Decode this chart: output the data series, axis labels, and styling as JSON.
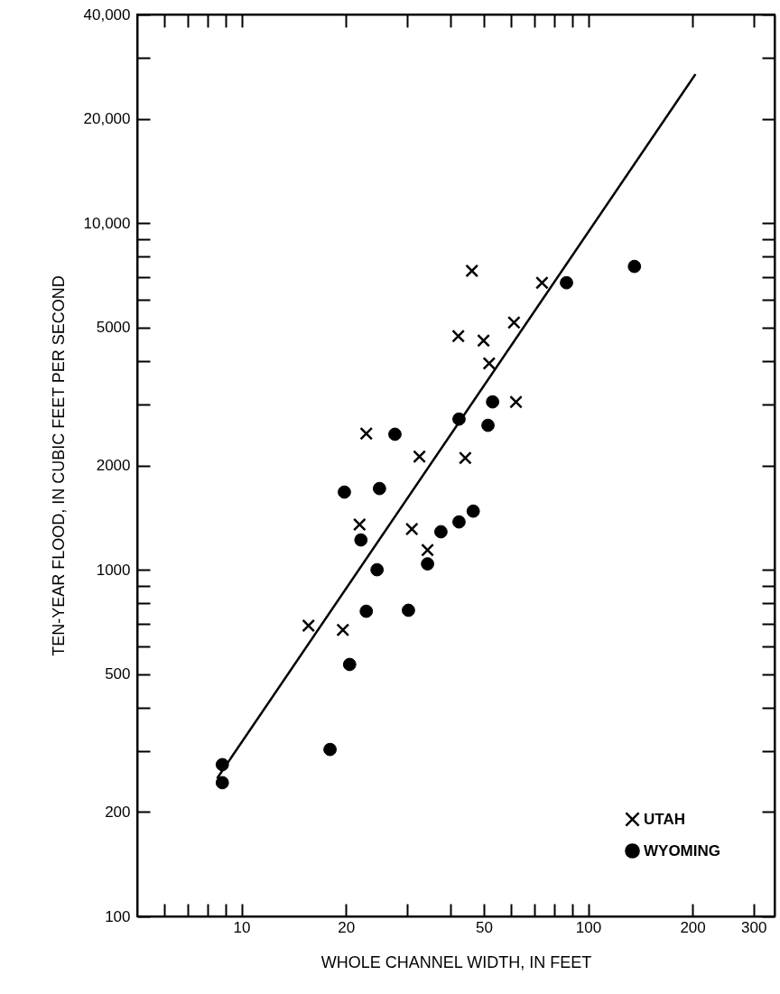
{
  "chart_data": {
    "type": "scatter",
    "xlabel": "WHOLE CHANNEL WIDTH, IN FEET",
    "ylabel": "TEN-YEAR FLOOD, IN CUBIC FEET PER SECOND",
    "log": "xy",
    "grid": false,
    "legend": "bottom right",
    "xlim": [
      5,
      345
    ],
    "ylim": [
      100,
      40000
    ],
    "xticks": [
      {
        "value": 6,
        "label": null
      },
      {
        "value": 7,
        "label": null
      },
      {
        "value": 8,
        "label": null
      },
      {
        "value": 9,
        "label": null
      },
      10,
      20,
      {
        "value": 30,
        "label": null
      },
      {
        "value": 40,
        "label": null
      },
      50,
      {
        "value": 60,
        "label": null
      },
      {
        "value": 70,
        "label": null
      },
      {
        "value": 80,
        "label": null
      },
      {
        "value": 90,
        "label": null
      },
      100,
      200,
      300
    ],
    "yticks": [
      100,
      200,
      {
        "value": 300,
        "label": null
      },
      {
        "value": 400,
        "label": null
      },
      500,
      {
        "value": 600,
        "label": null
      },
      {
        "value": 700,
        "label": null
      },
      {
        "value": 800,
        "label": null
      },
      {
        "value": 900,
        "label": null
      },
      1000,
      2000,
      {
        "value": 3000,
        "label": null
      },
      {
        "value": 4000,
        "label": null
      },
      5000,
      {
        "value": 6000,
        "label": null
      },
      {
        "value": 7000,
        "label": null
      },
      {
        "value": 8000,
        "label": null
      },
      {
        "value": 9000,
        "label": null
      },
      {
        "value": 10000,
        "label": "10,000"
      },
      {
        "value": 20000,
        "label": "20,000"
      },
      {
        "value": 30000,
        "label": null
      },
      {
        "value": 40000,
        "label": "40,000"
      }
    ],
    "series": [
      {
        "name": "UTAH",
        "type": "scatter",
        "marker": "cross",
        "color": "#000000",
        "x": [
          15.6,
          19.6,
          21.9,
          22.9,
          32.6,
          31.0,
          34.4,
          42.2,
          44.2,
          46.2,
          49.9,
          51.8,
          61.1,
          61.9,
          73.6
        ],
        "values": [
          690,
          670,
          1350,
          2470,
          2120,
          1310,
          1140,
          4720,
          2100,
          7280,
          4580,
          3940,
          5170,
          3050,
          6730
        ]
      },
      {
        "name": "WYOMING",
        "type": "scatter",
        "marker": "circle",
        "color": "#000000",
        "x": [
          8.8,
          8.8,
          18.0,
          19.8,
          20.5,
          22.1,
          22.9,
          24.6,
          25.0,
          27.7,
          30.3,
          34.4,
          37.6,
          42.4,
          42.4,
          46.6,
          51.4,
          53.0,
          86.6,
          136
        ],
        "values": [
          243,
          274,
          303,
          1675,
          533,
          1219,
          759,
          1000,
          1715,
          2460,
          764,
          1040,
          1287,
          1374,
          2720,
          1476,
          2610,
          3050,
          6730,
          7500
        ]
      },
      {
        "type": "line",
        "color": "#000000",
        "x": [
          8.5,
          204
        ],
        "values": [
          250,
          26900
        ]
      }
    ]
  }
}
